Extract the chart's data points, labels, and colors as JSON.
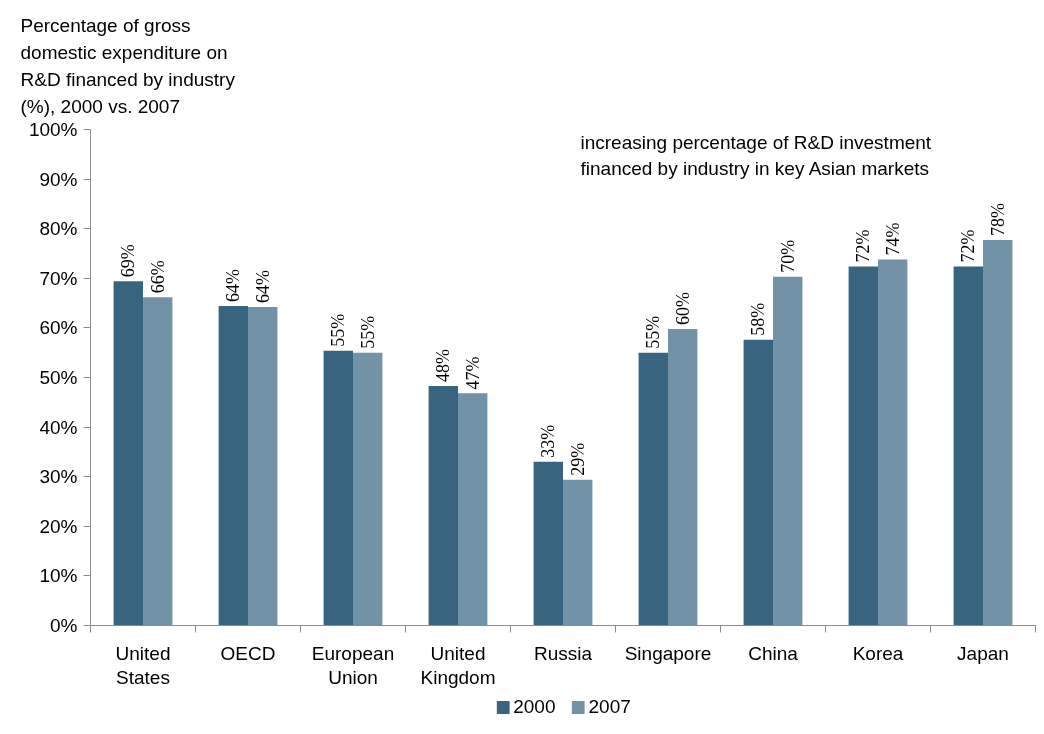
{
  "chart_data": {
    "type": "bar",
    "title": "Percentage of gross domestic expenditure on R&D financed by industry (%), 2000 vs. 2007",
    "annotations": [
      "increasing percentage of R&D investment financed by industry in key Asian markets"
    ],
    "categories": [
      "United States",
      "OECD",
      "European Union",
      "United Kingdom",
      "Russia",
      "Singapore",
      "China",
      "Korea",
      "Japan"
    ],
    "series": [
      {
        "name": "2000",
        "color": "#386480",
        "values": [
          69.4,
          64.4,
          55.4,
          48.3,
          33.0,
          55.0,
          57.6,
          72.4,
          72.4
        ],
        "value_labels": [
          "69%",
          "64%",
          "55%",
          "48%",
          "33%",
          "55%",
          "58%",
          "72%",
          "72%"
        ]
      },
      {
        "name": "2007",
        "color": "#7292a8",
        "values": [
          66.2,
          64.2,
          55.0,
          46.8,
          29.4,
          59.8,
          70.3,
          73.8,
          77.7
        ],
        "value_labels": [
          "66%",
          "64%",
          "55%",
          "47%",
          "29%",
          "60%",
          "70%",
          "74%",
          "78%"
        ]
      }
    ],
    "ylim": [
      0,
      100
    ],
    "yticks": [
      {
        "value": 0,
        "label": "0%"
      },
      {
        "value": 10,
        "label": "10%"
      },
      {
        "value": 20,
        "label": "20%"
      },
      {
        "value": 30,
        "label": "30%"
      },
      {
        "value": 40,
        "label": "40%"
      },
      {
        "value": 50,
        "label": "50%"
      },
      {
        "value": 60,
        "label": "60%"
      },
      {
        "value": 70,
        "label": "70%"
      },
      {
        "value": 80,
        "label": "80%"
      },
      {
        "value": 90,
        "label": "90%"
      },
      {
        "value": 100,
        "label": "100%"
      }
    ],
    "legend": "bottom"
  }
}
